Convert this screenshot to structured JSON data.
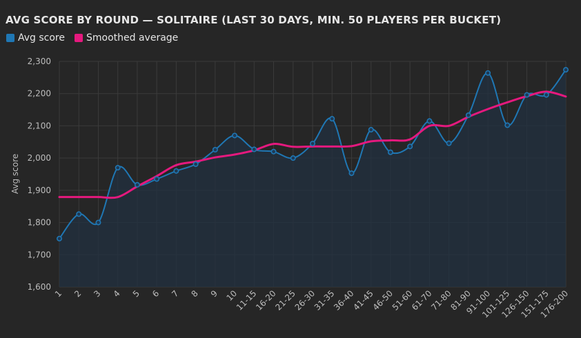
{
  "chart_title": "AVG SCORE BY ROUND — SOLITAIRE (LAST 30 DAYS, MIN. 50 PLAYERS PER BUCKET)",
  "colors": {
    "background": "#262626",
    "grid": "#3b3b3b",
    "avg_score": "#1f77b4",
    "smoothed": "#e5197e",
    "area_fill": "#223040"
  },
  "legend": [
    {
      "label": "Avg score",
      "color": "#1f77b4"
    },
    {
      "label": "Smoothed average",
      "color": "#e5197e"
    }
  ],
  "chart_data": {
    "type": "line",
    "title": "AVG SCORE BY ROUND — SOLITAIRE (LAST 30 DAYS, MIN. 50 PLAYERS PER BUCKET)",
    "xlabel": "",
    "ylabel": "Avg score",
    "ylim": [
      1600,
      2300
    ],
    "yticks": [
      1600,
      1700,
      1800,
      1900,
      2000,
      2100,
      2200,
      2300
    ],
    "ytick_labels": [
      "1,600",
      "1,700",
      "1,800",
      "1,900",
      "2,000",
      "2,100",
      "2,200",
      "2,300"
    ],
    "grid": true,
    "legend_position": "top-left",
    "categories": [
      "1",
      "2",
      "3",
      "4",
      "5",
      "6",
      "7",
      "8",
      "9",
      "10",
      "11-15",
      "16-20",
      "21-25",
      "26-30",
      "31-35",
      "36-40",
      "41-45",
      "46-50",
      "51-60",
      "61-70",
      "71-80",
      "81-90",
      "91-100",
      "101-125",
      "126-150",
      "151-175",
      "176-200"
    ],
    "series": [
      {
        "name": "Avg score",
        "style": "line-with-markers-and-area",
        "values": [
          1750,
          1826,
          1800,
          1970,
          1917,
          1935,
          1960,
          1981,
          2026,
          2070,
          2027,
          2020,
          2000,
          2045,
          2122,
          1953,
          2088,
          2018,
          2036,
          2115,
          2046,
          2133,
          2264,
          2102,
          2196,
          2196,
          2274
        ]
      },
      {
        "name": "Smoothed average",
        "style": "line",
        "values": [
          1879,
          1879,
          1879,
          1879,
          1912,
          1944,
          1978,
          1989,
          2002,
          2011,
          2024,
          2044,
          2035,
          2036,
          2036,
          2037,
          2052,
          2055,
          2058,
          2100,
          2100,
          2128,
          2152,
          2173,
          2192,
          2206,
          2191
        ]
      }
    ]
  }
}
